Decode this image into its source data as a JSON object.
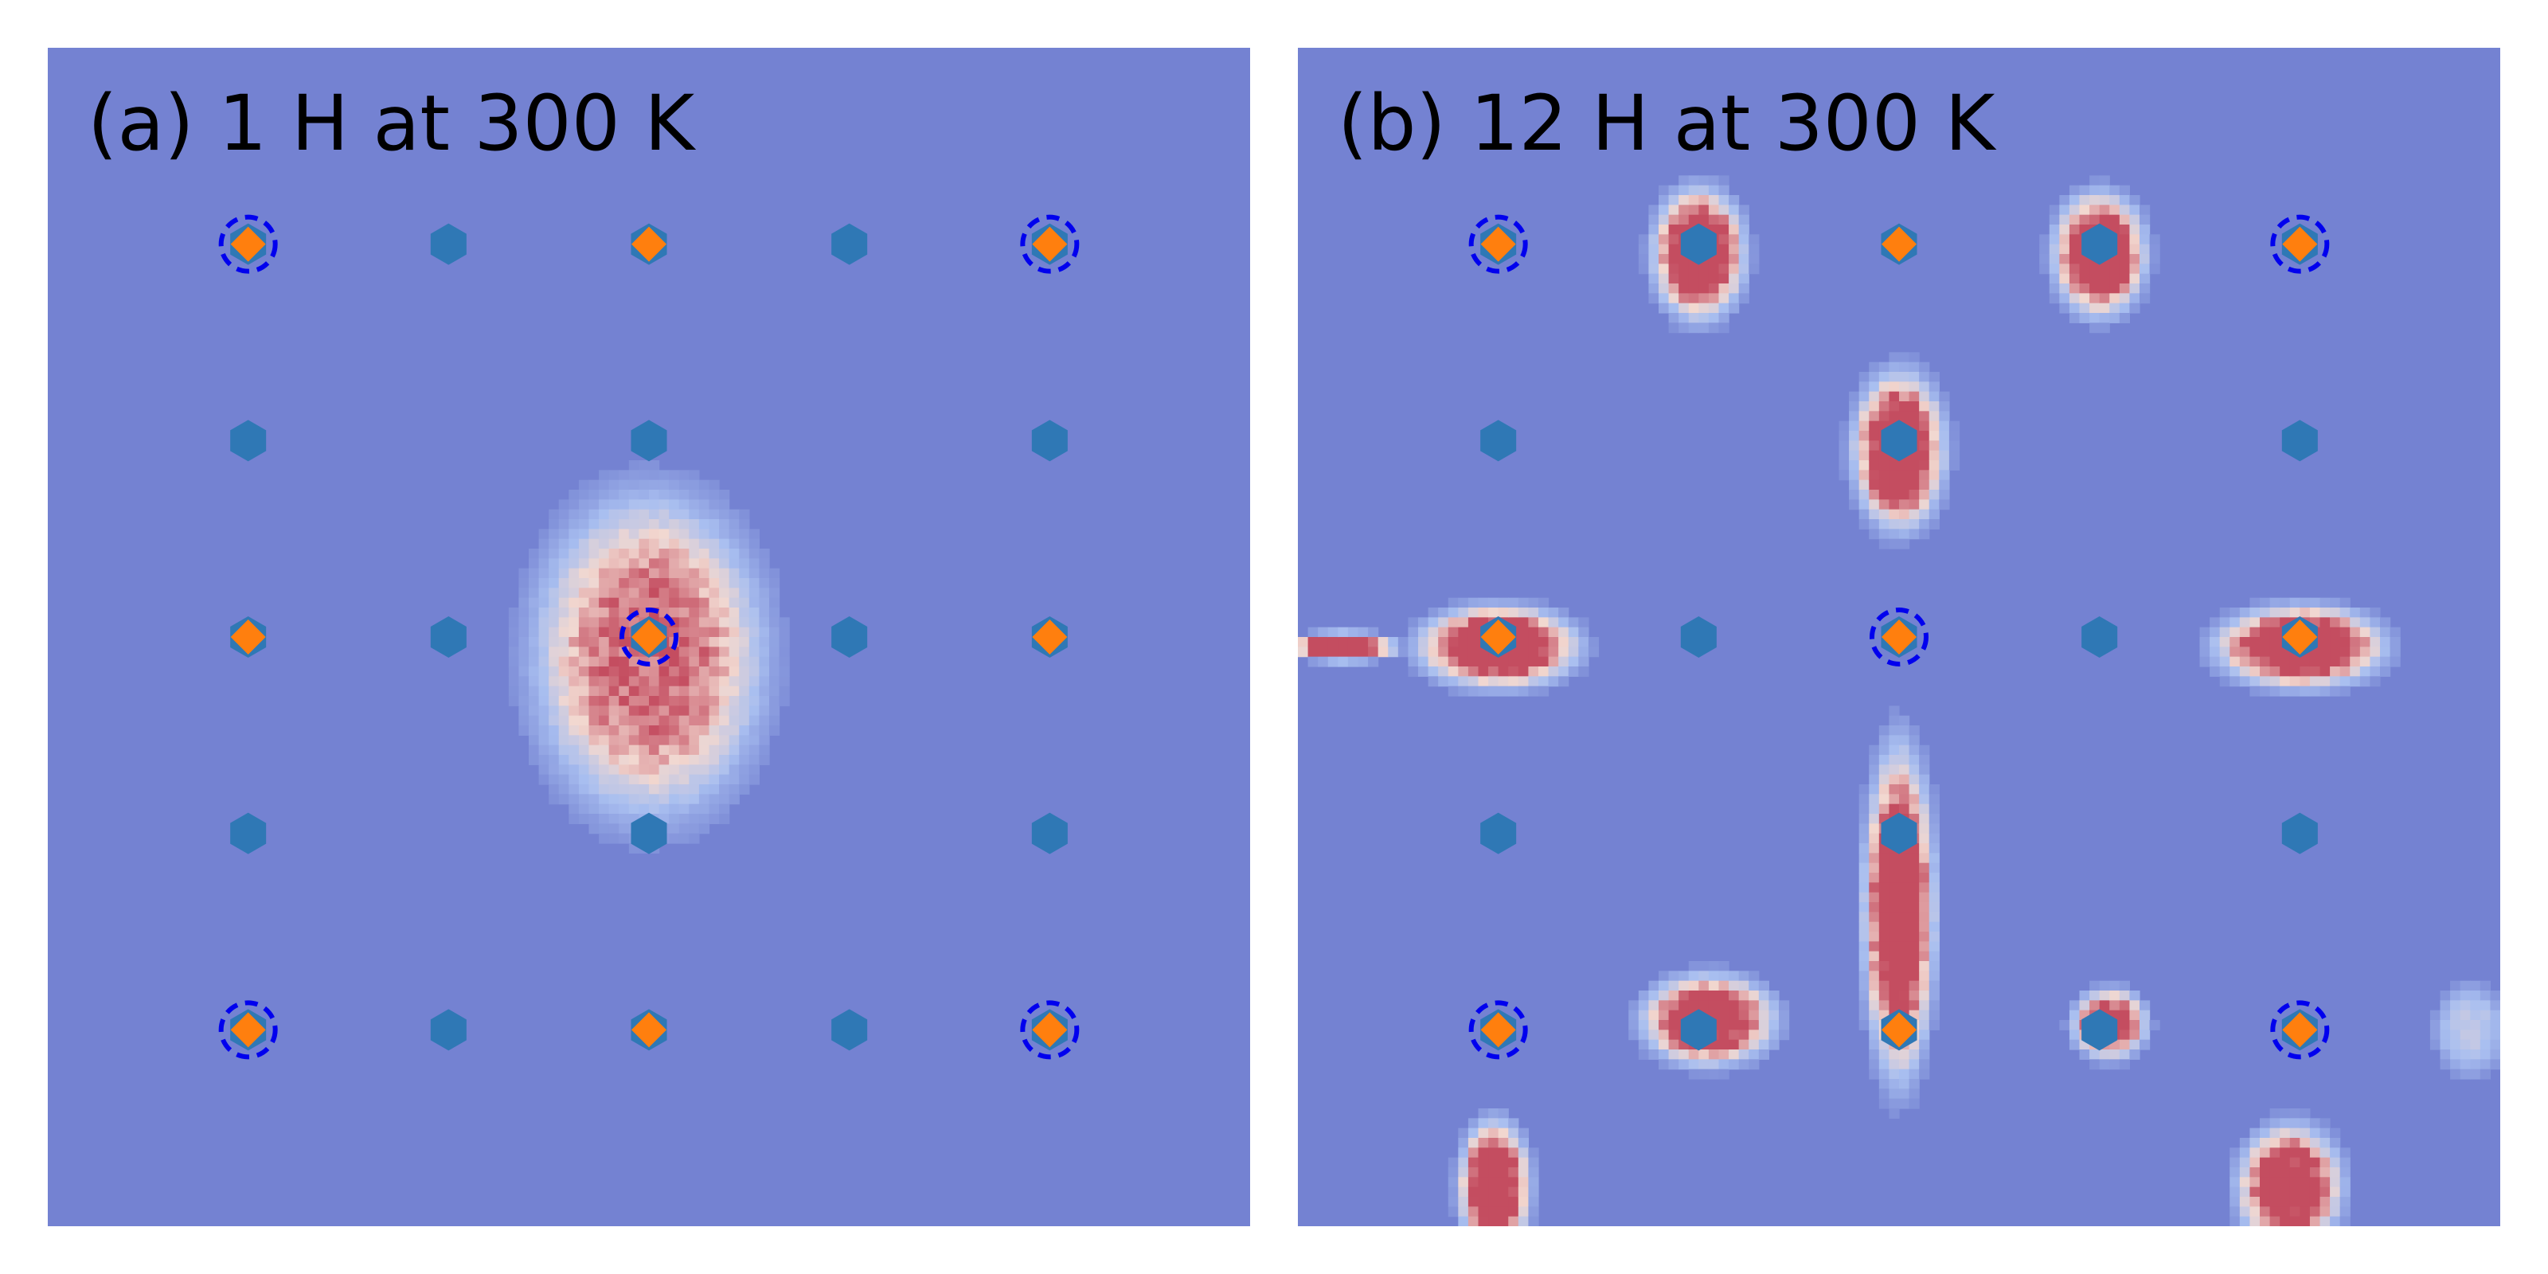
{
  "figure": {
    "panels": [
      {
        "id": "a",
        "title": "(a) 1 H at 300 K"
      },
      {
        "id": "b",
        "title": "(b) 12 H at 300 K"
      }
    ],
    "colors": {
      "background": "#7482d2",
      "hexagon_marker": "#2f78b5",
      "diamond_marker": "#ff7f0e",
      "dashed_circle": "#0000ee",
      "density_low": "#a9bff0",
      "density_mid": "#f2d8d0",
      "density_high": "#c44d60"
    }
  },
  "chart_data": [
    {
      "type": "heatmap",
      "title": "(a) 1 H at 300 K",
      "xlim": [
        0,
        6
      ],
      "ylim": [
        0,
        6
      ],
      "grid": false,
      "hexagon_sites": [
        [
          1,
          1
        ],
        [
          2,
          1
        ],
        [
          3,
          1
        ],
        [
          4,
          1
        ],
        [
          5,
          1
        ],
        [
          1,
          2
        ],
        [
          3,
          2
        ],
        [
          5,
          2
        ],
        [
          1,
          3
        ],
        [
          2,
          3
        ],
        [
          3,
          3
        ],
        [
          4,
          3
        ],
        [
          5,
          3
        ],
        [
          1,
          4
        ],
        [
          3,
          4
        ],
        [
          5,
          4
        ],
        [
          1,
          5
        ],
        [
          2,
          5
        ],
        [
          3,
          5
        ],
        [
          4,
          5
        ],
        [
          5,
          5
        ]
      ],
      "diamond_sites": [
        [
          1,
          1
        ],
        [
          3,
          1
        ],
        [
          5,
          1
        ],
        [
          1,
          3
        ],
        [
          3,
          3
        ],
        [
          5,
          3
        ],
        [
          1,
          5
        ],
        [
          3,
          5
        ],
        [
          5,
          5
        ]
      ],
      "circled_sites": [
        [
          1,
          1
        ],
        [
          5,
          1
        ],
        [
          3,
          3
        ],
        [
          1,
          5
        ],
        [
          5,
          5
        ]
      ],
      "density_blobs": [
        {
          "center": [
            3.0,
            3.1
          ],
          "rx": 0.55,
          "ry": 0.78,
          "level": 0.8
        }
      ]
    },
    {
      "type": "heatmap",
      "title": "(b) 12 H at 300 K",
      "xlim": [
        0,
        6
      ],
      "ylim": [
        0,
        6
      ],
      "grid": false,
      "hexagon_sites": [
        [
          1,
          1
        ],
        [
          2,
          1
        ],
        [
          3,
          1
        ],
        [
          4,
          1
        ],
        [
          5,
          1
        ],
        [
          1,
          2
        ],
        [
          3,
          2
        ],
        [
          5,
          2
        ],
        [
          1,
          3
        ],
        [
          2,
          3
        ],
        [
          3,
          3
        ],
        [
          4,
          3
        ],
        [
          5,
          3
        ],
        [
          1,
          4
        ],
        [
          3,
          4
        ],
        [
          5,
          4
        ],
        [
          1,
          5
        ],
        [
          2,
          5
        ],
        [
          3,
          5
        ],
        [
          4,
          5
        ],
        [
          5,
          5
        ]
      ],
      "diamond_sites": [
        [
          1,
          1
        ],
        [
          3,
          1
        ],
        [
          5,
          1
        ],
        [
          1,
          3
        ],
        [
          3,
          3
        ],
        [
          5,
          3
        ],
        [
          1,
          5
        ],
        [
          3,
          5
        ],
        [
          5,
          5
        ]
      ],
      "circled_sites": [
        [
          1,
          1
        ],
        [
          5,
          1
        ],
        [
          3,
          3
        ],
        [
          1,
          5
        ],
        [
          5,
          5
        ]
      ],
      "density_blobs": [
        {
          "center": [
            2.0,
            1.05
          ],
          "rx": 0.22,
          "ry": 0.32,
          "level": 1.0
        },
        {
          "center": [
            4.0,
            1.05
          ],
          "rx": 0.22,
          "ry": 0.3,
          "level": 1.0
        },
        {
          "center": [
            3.0,
            2.05
          ],
          "rx": 0.22,
          "ry": 0.38,
          "level": 1.0
        },
        {
          "center": [
            1.0,
            3.05
          ],
          "rx": 0.38,
          "ry": 0.2,
          "level": 1.0
        },
        {
          "center": [
            5.0,
            3.05
          ],
          "rx": 0.4,
          "ry": 0.2,
          "level": 1.0
        },
        {
          "center": [
            0.23,
            3.05
          ],
          "rx": 0.25,
          "ry": 0.07,
          "level": 1.0
        },
        {
          "center": [
            3.0,
            4.4
          ],
          "rx": 0.17,
          "ry": 0.8,
          "level": 1.0
        },
        {
          "center": [
            2.05,
            4.95
          ],
          "rx": 0.32,
          "ry": 0.22,
          "level": 0.95
        },
        {
          "center": [
            4.05,
            4.97
          ],
          "rx": 0.18,
          "ry": 0.17,
          "level": 0.9
        },
        {
          "center": [
            0.98,
            5.8
          ],
          "rx": 0.17,
          "ry": 0.32,
          "level": 1.0
        },
        {
          "center": [
            4.95,
            5.8
          ],
          "rx": 0.25,
          "ry": 0.3,
          "level": 0.95
        },
        {
          "center": [
            5.85,
            5.0
          ],
          "rx": 0.17,
          "ry": 0.22,
          "level": 0.4
        }
      ]
    }
  ]
}
